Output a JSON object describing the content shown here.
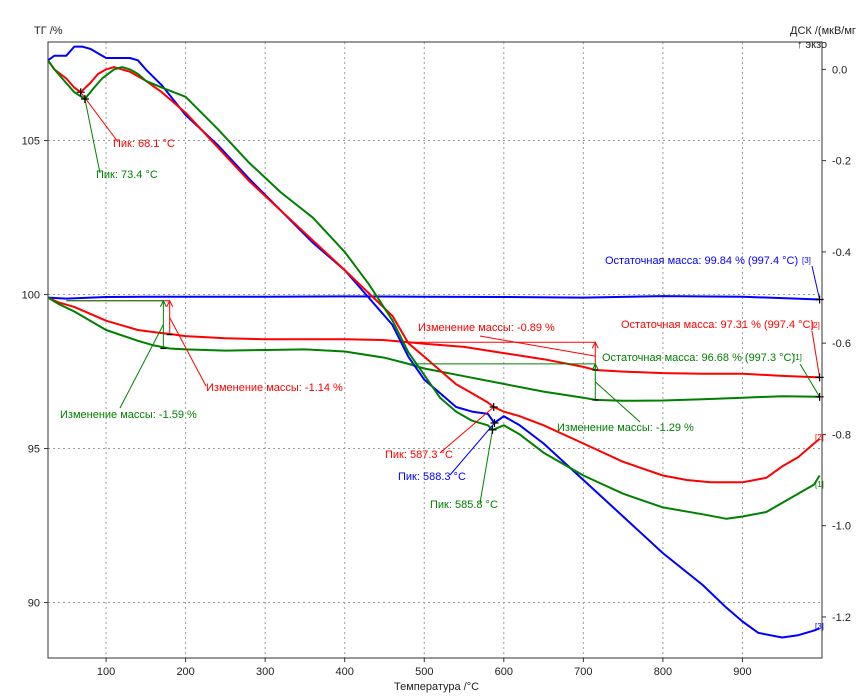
{
  "chart_data": {
    "type": "line",
    "left_axis_title": "ТГ /%",
    "right_axis_title_line1": "ДСК /(мкВ/мг)",
    "right_axis_title_line2": "↑ экзо",
    "x_axis_title": "Температура /°C",
    "x_ticks": [
      "100",
      "200",
      "300",
      "400",
      "500",
      "600",
      "700",
      "800",
      "900"
    ],
    "left_ticks": [
      "105",
      "100",
      "95",
      "90"
    ],
    "right_ticks": [
      "0.0",
      "-0.2",
      "-0.4",
      "-0.6",
      "-0.8",
      "-1.0",
      "-1.2"
    ],
    "xlim": [
      27,
      1000
    ],
    "ylim_left": [
      88.2,
      108.2
    ],
    "ylim_right": [
      -1.29,
      0.06
    ],
    "grid": true,
    "colors": {
      "red": "#ff0000",
      "green": "#008000",
      "blue": "#0000ff",
      "grid": "#9a9a9a",
      "text": "#222222"
    },
    "series": [
      {
        "color": "blue",
        "axis": "left",
        "x": [
          27,
          50,
          100,
          150,
          200,
          300,
          400,
          500,
          600,
          700,
          800,
          900,
          997
        ],
        "y": [
          99.9,
          99.87,
          99.92,
          99.93,
          99.93,
          99.93,
          99.94,
          99.93,
          99.92,
          99.9,
          99.95,
          99.93,
          99.84
        ]
      },
      {
        "color": "red",
        "axis": "left",
        "x": [
          27,
          40,
          60,
          100,
          140,
          160,
          180,
          200,
          250,
          300,
          350,
          400,
          450,
          480,
          500,
          550,
          600,
          650,
          700,
          715,
          750,
          800,
          850,
          900,
          950,
          997
        ],
        "y": [
          99.9,
          99.75,
          99.6,
          99.15,
          98.85,
          98.78,
          98.72,
          98.65,
          98.58,
          98.55,
          98.55,
          98.55,
          98.52,
          98.45,
          98.4,
          98.3,
          98.1,
          97.9,
          97.65,
          97.55,
          97.5,
          97.45,
          97.43,
          97.43,
          97.36,
          97.31
        ]
      },
      {
        "color": "green",
        "axis": "left",
        "x": [
          27,
          40,
          60,
          100,
          140,
          160,
          180,
          200,
          250,
          300,
          350,
          400,
          450,
          480,
          500,
          550,
          600,
          650,
          700,
          715,
          750,
          800,
          850,
          900,
          950,
          997
        ],
        "y": [
          99.9,
          99.7,
          99.45,
          98.85,
          98.5,
          98.35,
          98.25,
          98.22,
          98.18,
          98.2,
          98.22,
          98.15,
          97.95,
          97.75,
          97.6,
          97.35,
          97.1,
          96.85,
          96.65,
          96.58,
          96.55,
          96.56,
          96.6,
          96.65,
          96.7,
          96.68
        ]
      },
      {
        "color": "blue",
        "axis": "right",
        "x": [
          27,
          35,
          50,
          60,
          70,
          80,
          90,
          100,
          110,
          120,
          130,
          140,
          150,
          170,
          200,
          240,
          280,
          320,
          360,
          400,
          430,
          460,
          480,
          500,
          520,
          540,
          560,
          580,
          588,
          600,
          620,
          650,
          700,
          750,
          800,
          850,
          880,
          900,
          920,
          950,
          970,
          990,
          997
        ],
        "y": [
          0.02,
          0.03,
          0.03,
          0.05,
          0.05,
          0.045,
          0.035,
          0.025,
          0.025,
          0.025,
          0.025,
          0.02,
          0.0,
          -0.035,
          -0.1,
          -0.165,
          -0.24,
          -0.31,
          -0.38,
          -0.44,
          -0.5,
          -0.56,
          -0.63,
          -0.68,
          -0.71,
          -0.74,
          -0.75,
          -0.755,
          -0.775,
          -0.76,
          -0.78,
          -0.82,
          -0.9,
          -0.98,
          -1.06,
          -1.13,
          -1.18,
          -1.21,
          -1.235,
          -1.245,
          -1.24,
          -1.23,
          -1.225
        ]
      },
      {
        "color": "red",
        "axis": "right",
        "x": [
          27,
          35,
          50,
          60,
          68.1,
          80,
          90,
          100,
          110,
          120,
          130,
          140,
          150,
          170,
          200,
          240,
          280,
          320,
          360,
          400,
          430,
          460,
          480,
          500,
          520,
          540,
          560,
          580,
          587.3,
          600,
          620,
          650,
          700,
          750,
          800,
          830,
          860,
          880,
          900,
          930,
          950,
          970,
          990,
          997
        ],
        "y": [
          0.02,
          0.0,
          -0.02,
          -0.04,
          -0.05,
          -0.03,
          -0.01,
          0.0,
          0.005,
          0.0,
          -0.005,
          -0.015,
          -0.025,
          -0.05,
          -0.095,
          -0.17,
          -0.245,
          -0.31,
          -0.375,
          -0.44,
          -0.49,
          -0.54,
          -0.6,
          -0.63,
          -0.66,
          -0.69,
          -0.71,
          -0.73,
          -0.74,
          -0.75,
          -0.76,
          -0.78,
          -0.82,
          -0.86,
          -0.89,
          -0.9,
          -0.905,
          -0.905,
          -0.905,
          -0.895,
          -0.87,
          -0.85,
          -0.82,
          -0.81
        ]
      },
      {
        "color": "green",
        "axis": "right",
        "x": [
          27,
          35,
          50,
          60,
          73.4,
          85,
          95,
          110,
          120,
          130,
          140,
          150,
          170,
          200,
          240,
          280,
          320,
          360,
          400,
          430,
          460,
          480,
          500,
          520,
          540,
          560,
          580,
          585.8,
          600,
          620,
          650,
          700,
          750,
          800,
          850,
          880,
          900,
          930,
          950,
          970,
          990,
          997
        ],
        "y": [
          0.02,
          0.0,
          -0.03,
          -0.05,
          -0.065,
          -0.04,
          -0.02,
          0.0,
          0.005,
          0.0,
          -0.01,
          -0.025,
          -0.04,
          -0.06,
          -0.13,
          -0.205,
          -0.27,
          -0.325,
          -0.4,
          -0.47,
          -0.55,
          -0.62,
          -0.67,
          -0.72,
          -0.75,
          -0.77,
          -0.78,
          -0.79,
          -0.78,
          -0.8,
          -0.84,
          -0.89,
          -0.93,
          -0.96,
          -0.975,
          -0.985,
          -0.98,
          -0.97,
          -0.95,
          -0.93,
          -0.91,
          -0.89
        ]
      }
    ],
    "annotations": {
      "peak_red_low": {
        "text": "Пик: 68.1 °C",
        "color": "red",
        "x": 68.1,
        "y": -0.05,
        "axis": "right"
      },
      "peak_green_low": {
        "text": "Пик: 73.4 °C",
        "color": "green",
        "x": 73.4,
        "y": -0.065,
        "axis": "right"
      },
      "peak_red_high": {
        "text": "Пик: 587.3 °C",
        "color": "red",
        "x": 587.3,
        "y": -0.74,
        "axis": "right"
      },
      "peak_blue_high": {
        "text": "Пик: 588.3 °C",
        "color": "blue",
        "x": 588.3,
        "y": -0.775,
        "axis": "right"
      },
      "peak_green_high": {
        "text": "Пик: 585.8 °C",
        "color": "green",
        "x": 585.8,
        "y": -0.79,
        "axis": "right"
      },
      "mass_change_red_1": {
        "text": "Изменение массы: -1.14 %",
        "color": "red"
      },
      "mass_change_green_1": {
        "text": "Изменение массы: -1.59 %",
        "color": "green"
      },
      "mass_change_red_2": {
        "text": "Изменение массы: -0.89 %",
        "color": "red"
      },
      "mass_change_green_2": {
        "text": "Изменение массы: -1.29 %",
        "color": "green"
      },
      "residual_blue": {
        "text": "Остаточная масса: 99.84 % (997.4 °C)",
        "color": "blue"
      },
      "residual_red": {
        "text": "Остаточная масса: 97.31 % (997.4 °C)",
        "color": "red"
      },
      "residual_green": {
        "text": "Остаточная масса: 96.68 % (997.3 °C)",
        "color": "green"
      },
      "tag_blue_tg": {
        "text": "[3]",
        "color": "blue"
      },
      "tag_red_tg": {
        "text": "[2]",
        "color": "red"
      },
      "tag_green_tg": {
        "text": "[1]",
        "color": "green"
      },
      "tag_red_dsc": {
        "text": "[2]",
        "color": "red"
      },
      "tag_green_dsc": {
        "text": "[1]",
        "color": "green"
      },
      "tag_blue_dsc": {
        "text": "[3]",
        "color": "blue"
      }
    }
  }
}
